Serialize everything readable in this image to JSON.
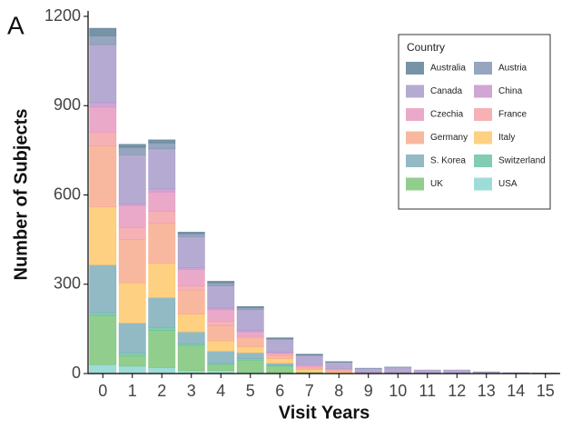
{
  "chart_data": {
    "type": "stacked_bar",
    "panel_label": "A",
    "x_label": "Visit Years",
    "y_label": "Number of Subjects",
    "legend_title": "Country",
    "legend_position": "top-right",
    "categories": [
      "0",
      "1",
      "2",
      "3",
      "4",
      "5",
      "6",
      "7",
      "8",
      "9",
      "10",
      "11",
      "12",
      "13",
      "14",
      "15"
    ],
    "ylim": [
      0,
      1200
    ],
    "yticks": [
      0,
      300,
      600,
      900,
      1200
    ],
    "series": [
      {
        "name": "Australia",
        "color": "#5f8196",
        "values": [
          25,
          10,
          10,
          5,
          5,
          3,
          2,
          2,
          1,
          0,
          0,
          0,
          0,
          0,
          0,
          0
        ]
      },
      {
        "name": "Austria",
        "color": "#8296b3",
        "values": [
          30,
          25,
          20,
          10,
          10,
          7,
          3,
          2,
          1,
          1,
          1,
          0,
          0,
          0,
          0,
          0
        ]
      },
      {
        "name": "Canada",
        "color": "#a89bc9",
        "values": [
          195,
          165,
          135,
          105,
          75,
          70,
          43,
          33,
          22,
          13,
          18,
          11,
          11,
          6,
          3,
          2
        ]
      },
      {
        "name": "China",
        "color": "#c995cc",
        "values": [
          15,
          5,
          10,
          5,
          5,
          5,
          2,
          0,
          0,
          0,
          0,
          0,
          0,
          0,
          0,
          0
        ]
      },
      {
        "name": "Czechia",
        "color": "#e89ac0",
        "values": [
          85,
          75,
          65,
          55,
          40,
          15,
          5,
          5,
          3,
          1,
          1,
          0,
          0,
          0,
          0,
          0
        ]
      },
      {
        "name": "France",
        "color": "#f4a3a8",
        "values": [
          45,
          40,
          40,
          15,
          15,
          5,
          5,
          5,
          4,
          1,
          1,
          1,
          1,
          0,
          0,
          0
        ]
      },
      {
        "name": "Germany",
        "color": "#f7ab8e",
        "values": [
          205,
          145,
          135,
          80,
          50,
          30,
          10,
          5,
          3,
          0,
          0,
          0,
          0,
          0,
          0,
          0
        ]
      },
      {
        "name": "Italy",
        "color": "#fdc86c",
        "values": [
          195,
          135,
          115,
          60,
          35,
          20,
          15,
          8,
          4,
          2,
          1,
          0,
          0,
          0,
          0,
          0
        ]
      },
      {
        "name": "S. Korea",
        "color": "#7eaebb",
        "values": [
          160,
          100,
          100,
          40,
          40,
          20,
          7,
          0,
          0,
          0,
          0,
          0,
          0,
          0,
          0,
          0
        ]
      },
      {
        "name": "Switzerland",
        "color": "#6cc3a3",
        "values": [
          10,
          10,
          10,
          5,
          5,
          5,
          3,
          0,
          0,
          0,
          0,
          0,
          0,
          0,
          0,
          0
        ]
      },
      {
        "name": "UK",
        "color": "#7ec679",
        "values": [
          165,
          35,
          125,
          85,
          20,
          40,
          22,
          3,
          2,
          0,
          0,
          0,
          0,
          0,
          0,
          0
        ]
      },
      {
        "name": "USA",
        "color": "#8dd6d1",
        "values": [
          30,
          25,
          20,
          10,
          10,
          5,
          3,
          2,
          0,
          0,
          0,
          0,
          0,
          0,
          0,
          0
        ]
      }
    ]
  }
}
